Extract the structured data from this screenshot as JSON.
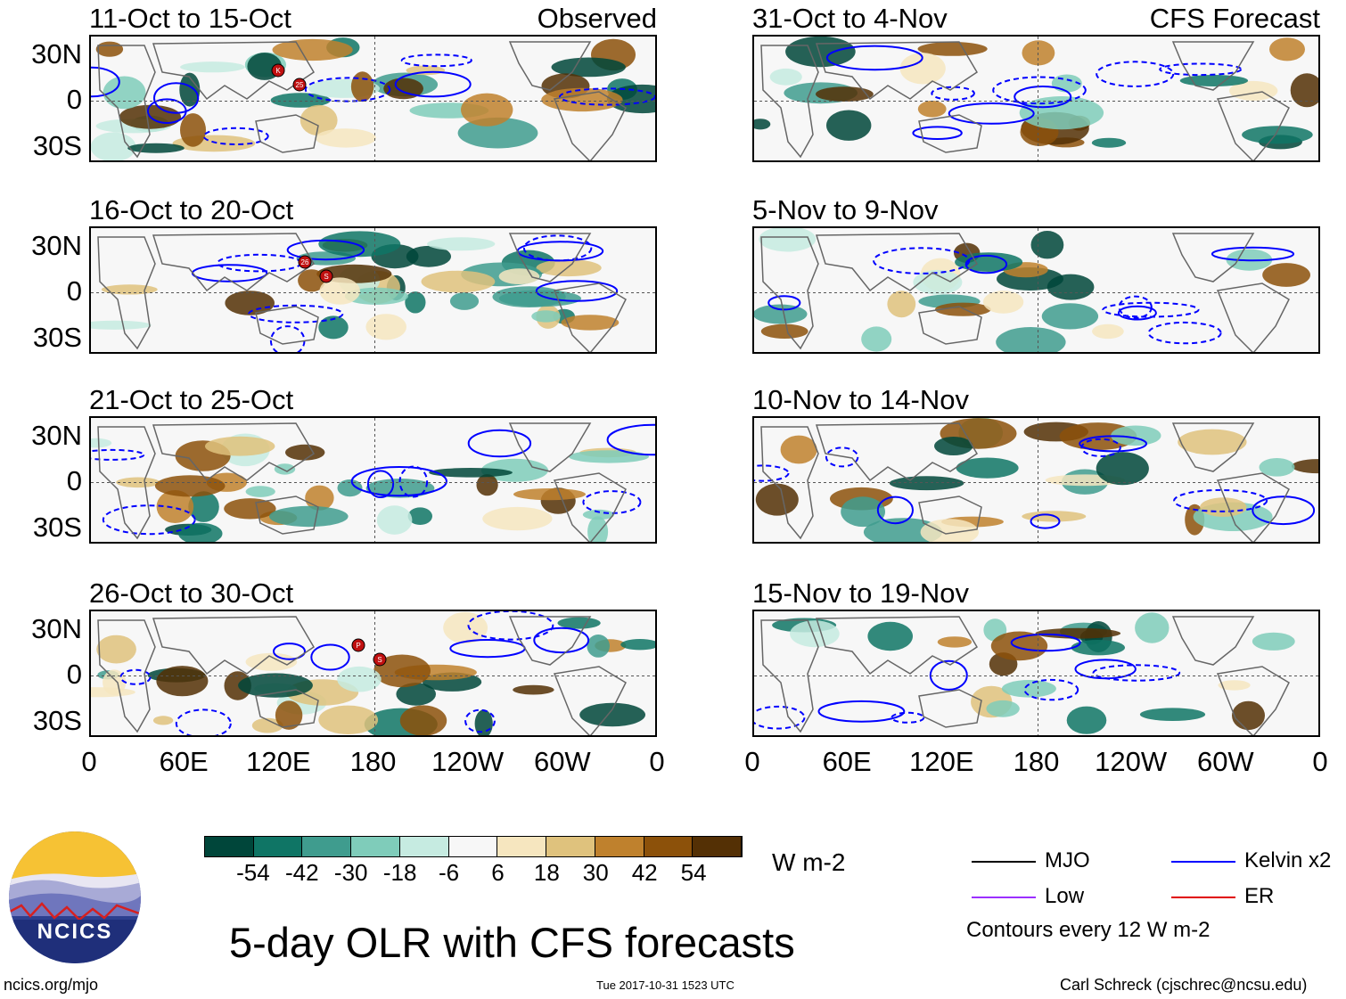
{
  "chart_data": {
    "type": "heatmap",
    "title": "5-day OLR with CFS forecasts",
    "variable": "OLR anomaly",
    "units": "W m-2",
    "observed_label": "Observed",
    "forecast_label": "CFS Forecast",
    "x_ticks": [
      "0",
      "60E",
      "120E",
      "180",
      "120W",
      "60W",
      "0"
    ],
    "y_ticks": [
      "30N",
      "0",
      "30S"
    ],
    "lon_range": [
      0,
      360
    ],
    "lat_range": [
      -40,
      40
    ],
    "colorbar": {
      "labels": [
        "-54",
        "-42",
        "-30",
        "-18",
        "-6",
        "6",
        "18",
        "30",
        "42",
        "54"
      ],
      "colors": [
        "#00463a",
        "#0f7565",
        "#3f9c8e",
        "#7fccba",
        "#c6ebe1",
        "#f7f7f7",
        "#f6e6bf",
        "#dfc27d",
        "#bf812d",
        "#8c510a",
        "#543005"
      ]
    },
    "contours_note": "Contours every 12 W m-2",
    "legend": [
      {
        "label": "MJO",
        "color": "#000000"
      },
      {
        "label": "Kelvin x2",
        "color": "#0000ff"
      },
      {
        "label": "Low",
        "color": "#9b30ff"
      },
      {
        "label": "ER",
        "color": "#e00000"
      }
    ],
    "panels": [
      {
        "period": "11-Oct to 15-Oct",
        "source": "observed",
        "storms": [
          "K",
          "25"
        ]
      },
      {
        "period": "16-Oct to 20-Oct",
        "source": "observed",
        "storms": [
          "26",
          "S"
        ]
      },
      {
        "period": "21-Oct to 25-Oct",
        "source": "observed",
        "storms": []
      },
      {
        "period": "26-Oct to 30-Oct",
        "source": "observed",
        "storms": [
          "P",
          "S"
        ]
      },
      {
        "period": "31-Oct to 4-Nov",
        "source": "forecast",
        "storms": []
      },
      {
        "period": "5-Nov to 9-Nov",
        "source": "forecast",
        "storms": []
      },
      {
        "period": "10-Nov to 14-Nov",
        "source": "forecast",
        "storms": []
      },
      {
        "period": "15-Nov to 19-Nov",
        "source": "forecast",
        "storms": []
      }
    ]
  },
  "footer": {
    "logo_text": "NCICS",
    "site": "ncics.org/mjo",
    "timestamp": "Tue 2017-10-31 1523 UTC",
    "credit": "Carl Schreck (cjschrec@ncsu.edu)"
  }
}
